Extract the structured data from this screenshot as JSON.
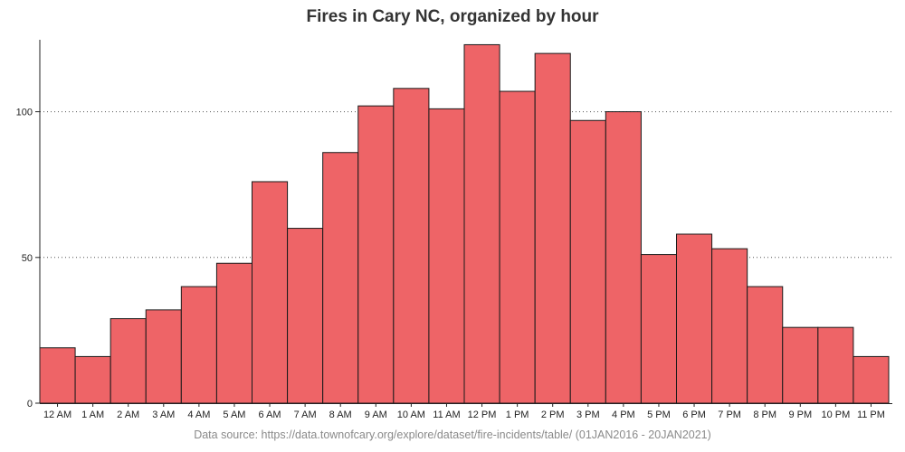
{
  "colors": {
    "bar_fill": "#ee6467",
    "bar_stroke": "#1a1a1a",
    "grid": "#555555",
    "axis": "#222222",
    "title": "#333333",
    "source": "#8a8a8a"
  },
  "chart_data": {
    "type": "bar",
    "title": "Fires in Cary NC, organized by hour",
    "xlabel": "",
    "ylabel": "",
    "categories": [
      "12 AM",
      "1 AM",
      "2 AM",
      "3 AM",
      "4 AM",
      "5 AM",
      "6 AM",
      "7 AM",
      "8 AM",
      "9 AM",
      "10 AM",
      "11 AM",
      "12 PM",
      "1 PM",
      "2 PM",
      "3 PM",
      "4 PM",
      "5 PM",
      "6 PM",
      "7 PM",
      "8 PM",
      "9 PM",
      "10 PM",
      "11 PM"
    ],
    "values": [
      19,
      16,
      29,
      32,
      40,
      48,
      76,
      60,
      86,
      102,
      108,
      101,
      123,
      107,
      120,
      97,
      100,
      51,
      58,
      53,
      40,
      26,
      26,
      16
    ],
    "ylim": [
      0,
      125
    ],
    "y_ticks": [
      0,
      50,
      100
    ],
    "grid": "dotted horizontal at 50 and 100",
    "source": "Data source: https://data.townofcary.org/explore/dataset/fire-incidents/table/ (01JAN2016 - 20JAN2021)"
  }
}
